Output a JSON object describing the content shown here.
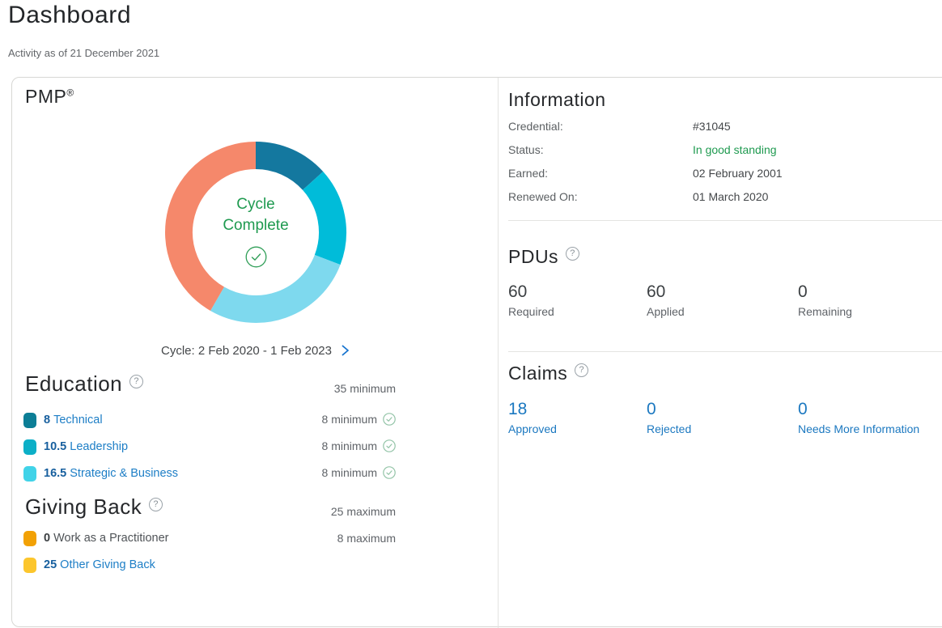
{
  "page": {
    "title": "Dashboard",
    "subtitle": "Activity as of 21 December 2021"
  },
  "icons": {
    "help": "?"
  },
  "certification": {
    "name": "PMP",
    "trademark": "®",
    "cycle_label": "Cycle: 2 Feb 2020 - 1 Feb 2023"
  },
  "chart_data": {
    "type": "pie",
    "donut": true,
    "title": "PMP renewal cycle PDU breakdown",
    "total": 60,
    "units": "PDUs",
    "segments": [
      {
        "label": "Technical",
        "value": 8,
        "color": "#14789f"
      },
      {
        "label": "Leadership",
        "value": 10.5,
        "color": "#00bcd9"
      },
      {
        "label": "Strategic & Business",
        "value": 16.5,
        "color": "#7ed9ee"
      },
      {
        "label": "Giving Back (Other Giving Back)",
        "value": 25,
        "color": "#f5886b"
      },
      {
        "label": "Work as a Practitioner",
        "value": 0,
        "color": "#f2a105"
      }
    ],
    "center_text": [
      "Cycle",
      "Complete"
    ],
    "center_status": "complete",
    "footer": "Cycle: 2 Feb 2020 - 1 Feb 2023",
    "legend_position": "below"
  },
  "education": {
    "heading": "Education",
    "requirement": "35 minimum",
    "items": [
      {
        "value": "8",
        "label": "Technical",
        "requirement": "8 minimum",
        "met": true,
        "color": "#0c7e96"
      },
      {
        "value": "10.5",
        "label": "Leadership",
        "requirement": "8 minimum",
        "met": true,
        "color": "#0cafc7"
      },
      {
        "value": "16.5",
        "label": "Strategic & Business",
        "requirement": "8 minimum",
        "met": true,
        "color": "#41d3e8"
      }
    ]
  },
  "giving_back": {
    "heading": "Giving Back",
    "requirement": "25 maximum",
    "items": [
      {
        "value": "0",
        "label": "Work as a Practitioner",
        "requirement": "8 maximum",
        "color": "#f2a105",
        "is_link": false
      },
      {
        "value": "25",
        "label": "Other Giving Back",
        "requirement": "",
        "color": "#fcc62d",
        "is_link": true
      }
    ]
  },
  "information": {
    "heading": "Information",
    "rows": [
      {
        "label": "Credential:",
        "value": "#31045"
      },
      {
        "label": "Status:",
        "value": "In good standing"
      },
      {
        "label": "Earned:",
        "value": "02 February 2001"
      },
      {
        "label": "Renewed On:",
        "value": "01 March 2020"
      }
    ],
    "status_color": "#1f9a50"
  },
  "pdus": {
    "heading": "PDUs",
    "stats": [
      {
        "value": "60",
        "label": "Required"
      },
      {
        "value": "60",
        "label": "Applied"
      },
      {
        "value": "0",
        "label": "Remaining"
      }
    ]
  },
  "claims": {
    "heading": "Claims",
    "stats": [
      {
        "value": "18",
        "label": "Approved"
      },
      {
        "value": "0",
        "label": "Rejected"
      },
      {
        "value": "0",
        "label": "Needs More Information"
      }
    ],
    "link_color": "#1b78c0"
  }
}
